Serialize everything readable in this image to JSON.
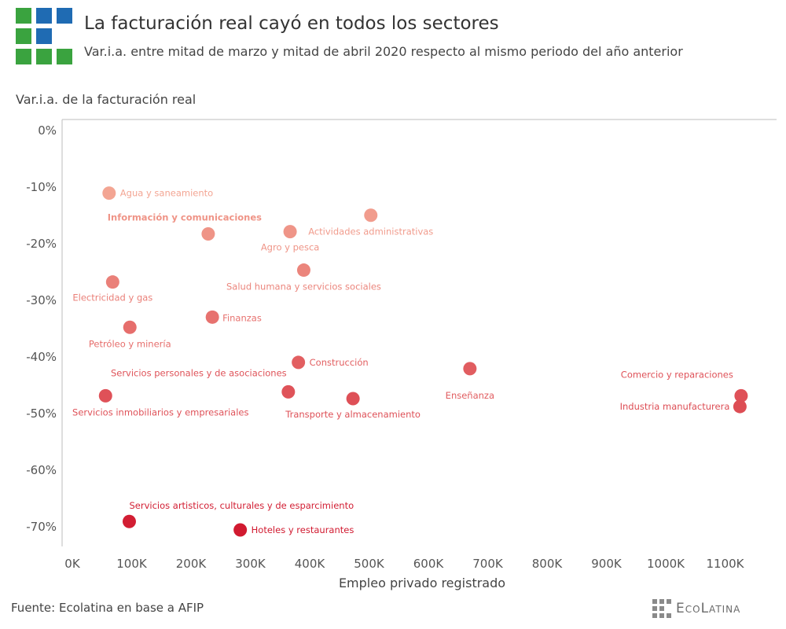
{
  "header": {
    "title": "La facturación real cayó en todos los sectores",
    "subtitle": "Var.i.a. entre mitad de marzo y mitad de abril 2020 respecto al mismo periodo del año anterior"
  },
  "footer": {
    "source": "Fuente: Ecolatina en base a AFIP",
    "brand": "EcoLatina"
  },
  "colors": {
    "logo_green": "#3aa33f",
    "logo_blue": "#1f6bb3",
    "brand_gray": "#8a8a8a"
  },
  "chart_data": {
    "type": "scatter",
    "ylabel": "Var.i.a. de la facturación real",
    "xlabel": "Empleo privado registrado",
    "xlim": [
      0,
      1150000
    ],
    "ylim": [
      -75,
      2
    ],
    "x_ticks": [
      0,
      100000,
      200000,
      300000,
      400000,
      500000,
      600000,
      700000,
      800000,
      900000,
      1000000,
      1100000
    ],
    "x_tick_labels": [
      "0K",
      "100K",
      "200K",
      "300K",
      "400K",
      "500K",
      "600K",
      "700K",
      "800K",
      "900K",
      "1000K",
      "1100K"
    ],
    "y_ticks": [
      0,
      -10,
      -20,
      -30,
      -40,
      -50,
      -60,
      -70
    ],
    "y_tick_labels": [
      "0%",
      "-10%",
      "-20%",
      "-30%",
      "-40%",
      "-50%",
      "-60%",
      "-70%"
    ],
    "grid": false,
    "color_scale": {
      "light": "#f4a895",
      "dark": "#d0172e"
    },
    "points": [
      {
        "label": "Agua y saneamiento",
        "x": 62000,
        "y": -11.2,
        "bold": false
      },
      {
        "label": "Actividades administrativas",
        "x": 503000,
        "y": -15.1,
        "bold": false
      },
      {
        "label": "Agro y pesca",
        "x": 367000,
        "y": -18.0,
        "bold": false
      },
      {
        "label": "Información y comunicaciones",
        "x": 229000,
        "y": -18.4,
        "bold": true
      },
      {
        "label": "Salud humana y servicios sociales",
        "x": 390000,
        "y": -24.8,
        "bold": false
      },
      {
        "label": "Electricidad y gas",
        "x": 68000,
        "y": -26.9,
        "bold": false
      },
      {
        "label": "Finanzas",
        "x": 236000,
        "y": -33.1,
        "bold": false
      },
      {
        "label": "Petróleo y minería",
        "x": 97000,
        "y": -34.9,
        "bold": false
      },
      {
        "label": "Construcción",
        "x": 381000,
        "y": -41.1,
        "bold": false
      },
      {
        "label": "Enseñanza",
        "x": 670000,
        "y": -42.2,
        "bold": false
      },
      {
        "label": "Servicios personales y de asociaciones",
        "x": 364000,
        "y": -46.3,
        "bold": false
      },
      {
        "label": "Transporte y almacenamiento",
        "x": 473000,
        "y": -47.5,
        "bold": false
      },
      {
        "label": "Servicios inmobiliarios y empresariales",
        "x": 56000,
        "y": -47.0,
        "bold": false
      },
      {
        "label": "Comercio y reparaciones",
        "x": 1127000,
        "y": -47.0,
        "bold": false
      },
      {
        "label": "Industria manufacturera",
        "x": 1125000,
        "y": -48.9,
        "bold": false
      },
      {
        "label": "Servicios artisticos, culturales y de esparcimiento",
        "x": 96000,
        "y": -69.2,
        "bold": false
      },
      {
        "label": "Hoteles y restaurantes",
        "x": 283000,
        "y": -70.7,
        "bold": false
      }
    ]
  }
}
